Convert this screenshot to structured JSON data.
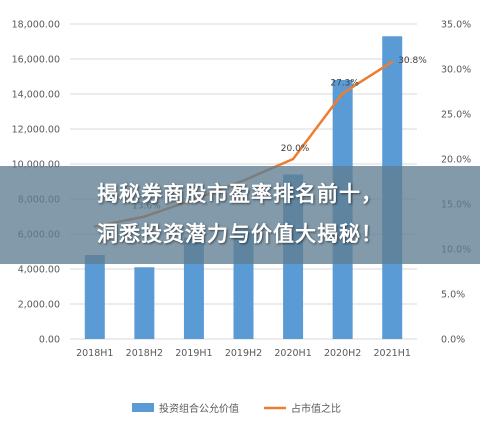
{
  "banner": {
    "line1": "揭秘券商股市盈率排名前十，",
    "line2": "洞悉投资潜力与价值大揭秘！"
  },
  "colors": {
    "bar": "#5b9bd5",
    "line": "#ed7d31",
    "grid": "#d9d9d9",
    "banner": "#5f7d91"
  },
  "chart_data": {
    "type": "bar",
    "categories": [
      "2018H1",
      "2018H2",
      "2019H1",
      "2019H2",
      "2020H1",
      "2020H2",
      "2021H1"
    ],
    "ylim": [
      0,
      18000
    ],
    "y2lim": [
      0,
      35
    ],
    "yticks": [
      "0.00",
      "2,000.00",
      "4,000.00",
      "6,000.00",
      "8,000.00",
      "10,000.00",
      "12,000.00",
      "14,000.00",
      "16,000.00",
      "18,000.00"
    ],
    "y2ticks": [
      "0.0%",
      "5.0%",
      "10.0%",
      "15.0%",
      "20.0%",
      "25.0%",
      "30.0%",
      "35.0%"
    ],
    "series": [
      {
        "name": "投资组合公允价值",
        "type": "bar",
        "values": [
          4800,
          4100,
          5800,
          6300,
          9400,
          14800,
          17300
        ]
      },
      {
        "name": "占市值之比",
        "type": "line",
        "axis": "right",
        "values": [
          12.5,
          13.6,
          15.5,
          17.6,
          20.0,
          27.3,
          30.8
        ]
      }
    ],
    "data_labels": [
      "",
      "13.6%",
      "",
      "",
      "20.0%",
      "27.3%",
      "30.8%"
    ]
  }
}
